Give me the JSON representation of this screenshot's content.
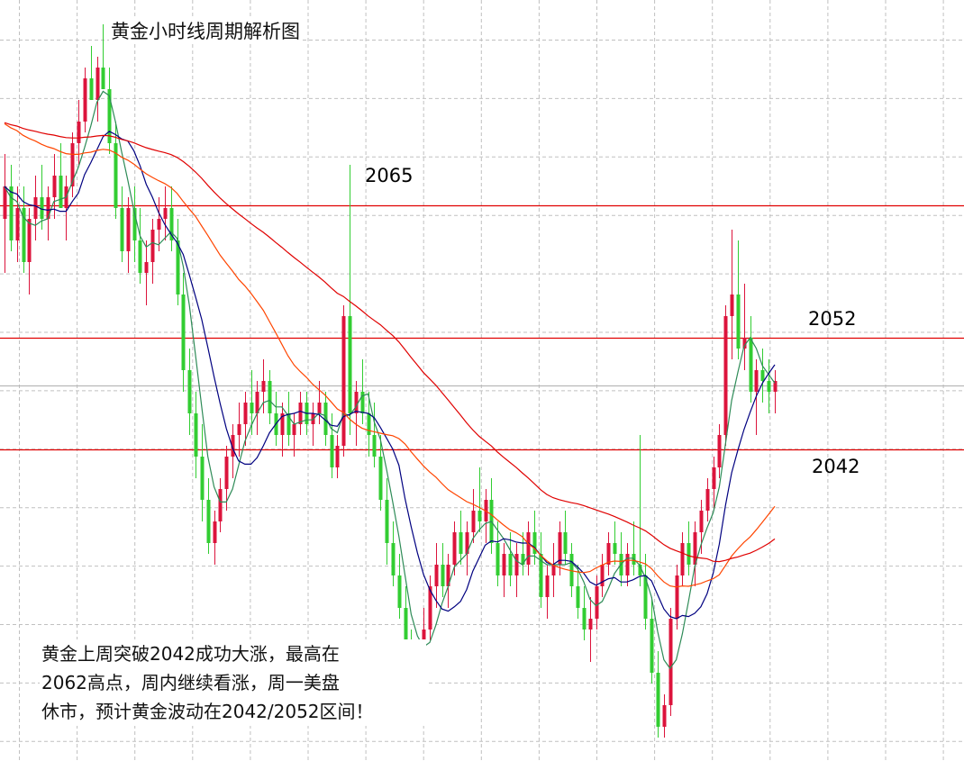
{
  "chart_data": {
    "type": "candlestick",
    "title": "黄金小时线周期解析图",
    "xlabel": "",
    "ylabel": "",
    "ylim": [
      2012.5,
      2082.5
    ],
    "grid": true,
    "candle_colors": {
      "up": "#dc143c",
      "down": "#32cd32"
    },
    "levels": [
      {
        "label": "2065",
        "value": 2065,
        "color": "#e00000"
      },
      {
        "label": "2052",
        "value": 2052,
        "color": "#e00000"
      },
      {
        "label": "2042",
        "value": 2042,
        "color": "#e00000"
      }
    ],
    "current_price_line": {
      "value": 2047.6,
      "color": "#b8b8b8"
    },
    "moving_averages": [
      {
        "name": "MA5",
        "period": 5,
        "color": "#2e8b57"
      },
      {
        "name": "MA10",
        "period": 10,
        "color": "#000080"
      },
      {
        "name": "MA30",
        "period": 30,
        "color": "#ff4500"
      },
      {
        "name": "MA60",
        "period": 60,
        "color": "#e00000"
      }
    ],
    "ohlc": [
      [
        2063,
        2069,
        2058,
        2066
      ],
      [
        2066,
        2068,
        2060,
        2061
      ],
      [
        2061,
        2066,
        2059,
        2064
      ],
      [
        2064,
        2066,
        2058,
        2059
      ],
      [
        2059,
        2064,
        2056,
        2063
      ],
      [
        2063,
        2067,
        2061,
        2065
      ],
      [
        2065,
        2068,
        2062,
        2063
      ],
      [
        2063,
        2066,
        2061,
        2065
      ],
      [
        2065,
        2069,
        2063,
        2067
      ],
      [
        2067,
        2070,
        2064,
        2064
      ],
      [
        2064,
        2067,
        2061,
        2066
      ],
      [
        2066,
        2071,
        2065,
        2070
      ],
      [
        2070,
        2074,
        2068,
        2072
      ],
      [
        2072,
        2077,
        2071,
        2076
      ],
      [
        2076,
        2079,
        2074,
        2074
      ],
      [
        2074,
        2078,
        2072,
        2077
      ],
      [
        2077,
        2081,
        2075,
        2075
      ],
      [
        2075,
        2077,
        2069,
        2070
      ],
      [
        2070,
        2072,
        2063,
        2064
      ],
      [
        2064,
        2066,
        2059,
        2060
      ],
      [
        2060,
        2065,
        2058,
        2064
      ],
      [
        2064,
        2066,
        2059,
        2061
      ],
      [
        2061,
        2064,
        2057,
        2058
      ],
      [
        2058,
        2061,
        2055,
        2059
      ],
      [
        2059,
        2063,
        2057,
        2062
      ],
      [
        2062,
        2065,
        2060,
        2063
      ],
      [
        2063,
        2066,
        2061,
        2064
      ],
      [
        2064,
        2066,
        2060,
        2061
      ],
      [
        2061,
        2063,
        2055,
        2056
      ],
      [
        2056,
        2058,
        2047,
        2049
      ],
      [
        2049,
        2051,
        2043,
        2045
      ],
      [
        2045,
        2047,
        2039,
        2041
      ],
      [
        2041,
        2044,
        2035,
        2037
      ],
      [
        2037,
        2039,
        2032,
        2033
      ],
      [
        2033,
        2036,
        2031,
        2035
      ],
      [
        2035,
        2039,
        2034,
        2038
      ],
      [
        2038,
        2042,
        2036,
        2041
      ],
      [
        2041,
        2044,
        2039,
        2043
      ],
      [
        2043,
        2046,
        2041,
        2044
      ],
      [
        2044,
        2047,
        2042,
        2046
      ],
      [
        2046,
        2049,
        2043,
        2045
      ],
      [
        2045,
        2048,
        2043,
        2047
      ],
      [
        2047,
        2050,
        2045,
        2048
      ],
      [
        2048,
        2049,
        2044,
        2045
      ],
      [
        2045,
        2047,
        2042,
        2043
      ],
      [
        2043,
        2046,
        2041,
        2045
      ],
      [
        2045,
        2047,
        2042,
        2043
      ],
      [
        2043,
        2045,
        2041,
        2044
      ],
      [
        2044,
        2047,
        2043,
        2046
      ],
      [
        2046,
        2047,
        2043,
        2044
      ],
      [
        2044,
        2046,
        2042,
        2045
      ],
      [
        2045,
        2048,
        2044,
        2046
      ],
      [
        2046,
        2047,
        2042,
        2043
      ],
      [
        2043,
        2045,
        2039,
        2040
      ],
      [
        2040,
        2043,
        2039,
        2042
      ],
      [
        2042,
        2055,
        2041,
        2054
      ],
      [
        2054,
        2068,
        2043,
        2045
      ],
      [
        2045,
        2048,
        2042,
        2047
      ],
      [
        2047,
        2050,
        2044,
        2045
      ],
      [
        2045,
        2047,
        2041,
        2043
      ],
      [
        2043,
        2046,
        2040,
        2041
      ],
      [
        2041,
        2043,
        2036,
        2037
      ],
      [
        2037,
        2039,
        2031,
        2033
      ],
      [
        2033,
        2035,
        2029,
        2030
      ],
      [
        2030,
        2032,
        2026,
        2027
      ],
      [
        2027,
        2029,
        2022,
        2023
      ],
      [
        2023,
        2025,
        2018,
        2019
      ],
      [
        2019,
        2024,
        2017,
        2023
      ],
      [
        2023,
        2027,
        2021,
        2025
      ],
      [
        2025,
        2030,
        2024,
        2029
      ],
      [
        2029,
        2033,
        2027,
        2031
      ],
      [
        2031,
        2033,
        2028,
        2029
      ],
      [
        2029,
        2032,
        2027,
        2031
      ],
      [
        2031,
        2035,
        2030,
        2034
      ],
      [
        2034,
        2036,
        2031,
        2032
      ],
      [
        2032,
        2035,
        2030,
        2034
      ],
      [
        2034,
        2038,
        2033,
        2036
      ],
      [
        2036,
        2040,
        2034,
        2035
      ],
      [
        2035,
        2038,
        2033,
        2037
      ],
      [
        2037,
        2039,
        2032,
        2033
      ],
      [
        2033,
        2035,
        2029,
        2030
      ],
      [
        2030,
        2033,
        2028,
        2032
      ],
      [
        2032,
        2034,
        2029,
        2030
      ],
      [
        2030,
        2033,
        2028,
        2032
      ],
      [
        2032,
        2034,
        2030,
        2031
      ],
      [
        2031,
        2035,
        2030,
        2034
      ],
      [
        2034,
        2036,
        2031,
        2032
      ],
      [
        2032,
        2034,
        2027,
        2028
      ],
      [
        2028,
        2031,
        2026,
        2030
      ],
      [
        2030,
        2033,
        2028,
        2031
      ],
      [
        2031,
        2035,
        2030,
        2034
      ],
      [
        2034,
        2036,
        2031,
        2032
      ],
      [
        2032,
        2033,
        2028,
        2029
      ],
      [
        2029,
        2031,
        2026,
        2027
      ],
      [
        2027,
        2029,
        2024,
        2025
      ],
      [
        2025,
        2028,
        2022,
        2026
      ],
      [
        2026,
        2030,
        2025,
        2029
      ],
      [
        2029,
        2032,
        2028,
        2031
      ],
      [
        2031,
        2034,
        2030,
        2033
      ],
      [
        2033,
        2035,
        2031,
        2032
      ],
      [
        2032,
        2034,
        2029,
        2030
      ],
      [
        2030,
        2033,
        2029,
        2032
      ],
      [
        2032,
        2035,
        2030,
        2031
      ],
      [
        2031,
        2043,
        2029,
        2030
      ],
      [
        2030,
        2032,
        2025,
        2026
      ],
      [
        2026,
        2028,
        2020,
        2021
      ],
      [
        2021,
        2023,
        2015,
        2016
      ],
      [
        2016,
        2019,
        2015,
        2018
      ],
      [
        2018,
        2027,
        2017,
        2026
      ],
      [
        2026,
        2031,
        2025,
        2030
      ],
      [
        2030,
        2034,
        2029,
        2033
      ],
      [
        2033,
        2035,
        2030,
        2031
      ],
      [
        2031,
        2035,
        2029,
        2034
      ],
      [
        2034,
        2037,
        2032,
        2036
      ],
      [
        2036,
        2039,
        2035,
        2038
      ],
      [
        2038,
        2041,
        2036,
        2040
      ],
      [
        2040,
        2044,
        2039,
        2043
      ],
      [
        2043,
        2055,
        2042,
        2054
      ],
      [
        2054,
        2062,
        2050,
        2056
      ],
      [
        2056,
        2061,
        2050,
        2051
      ],
      [
        2051,
        2057,
        2049,
        2052
      ],
      [
        2052,
        2054,
        2046,
        2047
      ],
      [
        2047,
        2050,
        2043,
        2049
      ],
      [
        2049,
        2051,
        2046,
        2048
      ],
      [
        2048,
        2050,
        2045,
        2047
      ],
      [
        2047,
        2049,
        2045,
        2048
      ]
    ]
  },
  "header": {
    "title": "黄金小时线周期解析图"
  },
  "levels": {
    "l2065": "2065",
    "l2052": "2052",
    "l2042": "2042"
  },
  "note": {
    "line1": "黄金上周突破2042成功大涨，最高在",
    "line2": "2062高点，周内继续看涨，周一美盘",
    "line3": "休市，预计黄金波动在2042/2052区间！"
  }
}
